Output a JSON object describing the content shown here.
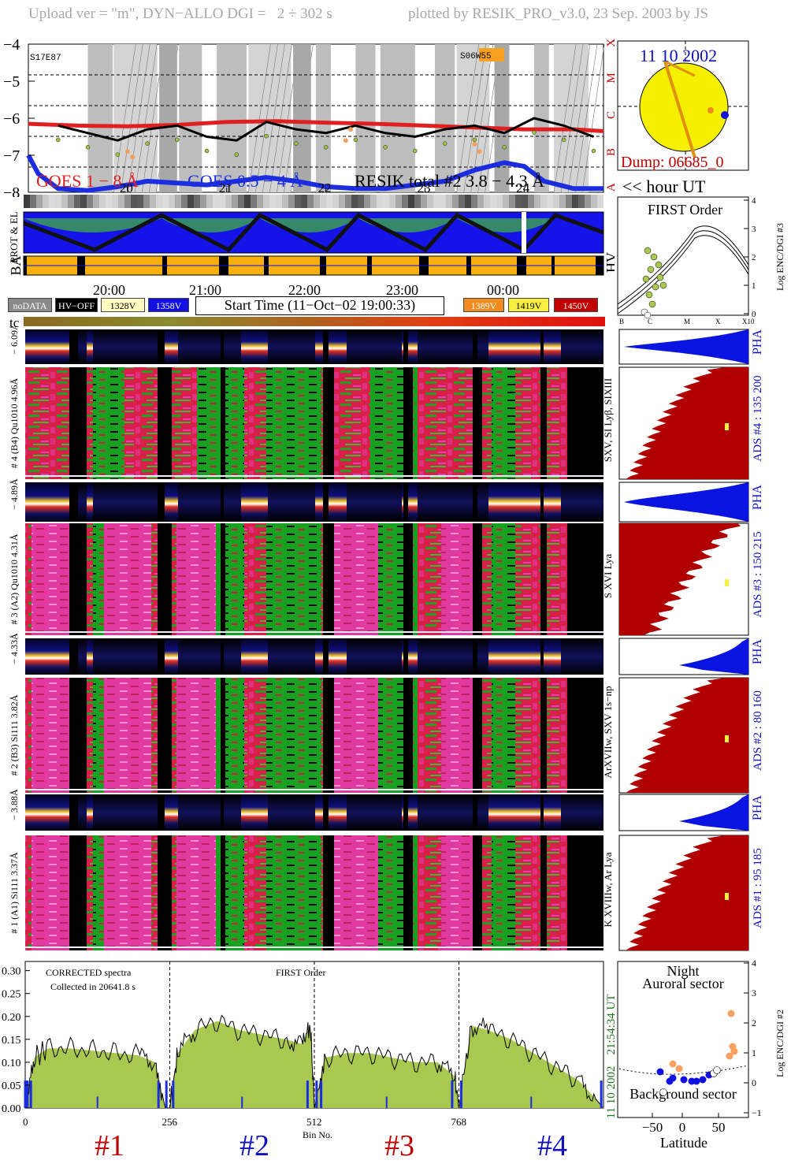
{
  "header": {
    "left": "Upload ver = \"m\", DYN−ALLO DGI =   2 ÷ 302 s",
    "right": "plotted by RESIK_PRO_v3.0, 23 Sep. 2003 by JS"
  },
  "goes_panel": {
    "y_ticks": [
      "−4",
      "−5",
      "−6",
      "−7",
      "−8"
    ],
    "class_ticks": [
      "X",
      "M",
      "C",
      "B",
      "A"
    ],
    "active_region_left": "S17E87",
    "active_region_right": "S06W55",
    "legend_long": "GOES 1 − 8 Å",
    "legend_short": "GOES 0.5 − 4 Å",
    "legend_resik": "RESIK total #2  3.8 − 4.3 Å",
    "hour_ticks": [
      "20",
      "21",
      "22",
      "23",
      "24"
    ],
    "hour_unit": "<< hour UT"
  },
  "sun_panel": {
    "date": "11 10 2002",
    "dump": "Dump: 06685_0"
  },
  "orbit_panel": {
    "label_prot": "PROT & EL",
    "label_ba": "BA",
    "label_hv": "HV"
  },
  "time_axis": {
    "ticks": [
      "20:00",
      "21:00",
      "22:00",
      "23:00",
      "00:00"
    ],
    "start_time": "Start Time (11−Oct−02 19:00:33)",
    "tc_label": "tc"
  },
  "hv_legend": [
    {
      "label": "noDATA",
      "bg": "#8a8a8a",
      "fg": "#ffffff"
    },
    {
      "label": "HV−OFF",
      "bg": "#000000",
      "fg": "#ffffff"
    },
    {
      "label": "1328V",
      "bg": "#fffbc0",
      "fg": "#000000"
    },
    {
      "label": "1358V",
      "bg": "#1010e0",
      "fg": "#ffffff"
    },
    {
      "label": "1389V",
      "bg": "#f08b20",
      "fg": "#ffffff"
    },
    {
      "label": "1419V",
      "bg": "#f8f040",
      "fg": "#000000"
    },
    {
      "label": "1450V",
      "bg": "#c00000",
      "fg": "#ffffff"
    }
  ],
  "first_order_panel": {
    "title": "FIRST Order",
    "ylabel": "Log ENC/DGI #3",
    "y_ticks": [
      "4",
      "3",
      "2",
      "1",
      "0"
    ],
    "x_ticks": [
      "B",
      "C",
      "M",
      "X",
      "X10"
    ]
  },
  "detectors": [
    {
      "id": "4",
      "pha_label": "− 6.09Å",
      "spec_label": "# 4 (B4) Qu1010 4.96Å",
      "lines": "SXV, SI Lyβ, SIXIII",
      "ads": "ADS #4 :   135 200"
    },
    {
      "id": "3",
      "pha_label": "− 4.89Å",
      "spec_label": "# 3 (A2) Qu1010  4.31Å",
      "lines": "S XVI Lya",
      "ads": "ADS #3 :   150 215"
    },
    {
      "id": "2",
      "pha_label": "− 4.33Å",
      "spec_label": "# 2 (B3) Si111  3.82Å",
      "lines": "ArXVIIw, SXV 1s−np",
      "ads": "ADS #2 :    80 160"
    },
    {
      "id": "1",
      "pha_label": "− 3.88Å",
      "spec_label": "# 1 (A1) Si111  3.37Å",
      "lines": "K XVIIIw, Ar Lya",
      "ads": "ADS #1 :    95 185"
    }
  ],
  "pha_label": "PHA",
  "spectrum_panel": {
    "y_ticks": [
      "0.30",
      "0.25",
      "0.20",
      "0.15",
      "0.10",
      "0.05",
      "0.00"
    ],
    "x_ticks": [
      "0",
      "256",
      "512",
      "768"
    ],
    "xlabel": "Bin No.",
    "caption1": "CORRECTED spectra",
    "caption2": "Collected in 20641.8 s",
    "order": "FIRST Order",
    "side_time": "21:54:34 UT",
    "side_date": "11 10 2002",
    "channel_labels": [
      "#1",
      "#2",
      "#3",
      "#4"
    ]
  },
  "latitude_panel": {
    "title1": "Night",
    "title2": "Auroral sector",
    "bottom": "Background sector",
    "ylabel": "Log ENC/DGI #2",
    "xlabel": "Latitude",
    "x_ticks": [
      "−50",
      "0",
      "50"
    ],
    "y_ticks": [
      "4",
      "3",
      "2",
      "1",
      "0",
      "−1"
    ]
  },
  "colors": {
    "goes_long": "#e02020",
    "goes_short": "#1a2ee0",
    "resik": "#000000",
    "spectrum_fill": "#a8c850",
    "ads_fill": "#b00000",
    "pha_fill": "#0a14e0",
    "sun": "#f5f000",
    "title_blue": "#1010c0",
    "title_red": "#c00000"
  },
  "chart_data": [
    {
      "type": "line",
      "title": "",
      "xlabel": "hour UT",
      "ylabel": "",
      "xlim": [
        19.0,
        24.8
      ],
      "ylim": [
        -8,
        -4
      ],
      "series": [
        {
          "name": "GOES 1 − 8 Å",
          "x": [
            19.0,
            19.5,
            20.0,
            20.5,
            21.0,
            21.5,
            22.0,
            22.5,
            23.0,
            23.5,
            24.0,
            24.5,
            24.8
          ],
          "values": [
            -6.15,
            -6.2,
            -6.22,
            -6.18,
            -6.1,
            -6.08,
            -6.12,
            -6.15,
            -6.2,
            -6.25,
            -6.3,
            -6.3,
            -6.35
          ]
        },
        {
          "name": "GOES 0.5 − 4 Å",
          "x": [
            19.0,
            19.1,
            19.3,
            19.6,
            19.9,
            20.2,
            20.5,
            20.8,
            21.1,
            21.4,
            21.7,
            22.0,
            22.3,
            22.6,
            22.9,
            23.2,
            23.5,
            23.8,
            24.0,
            24.2,
            24.5,
            24.8
          ],
          "values": [
            -7.0,
            -7.5,
            -7.9,
            -7.95,
            -7.85,
            -7.7,
            -7.75,
            -7.8,
            -7.7,
            -7.6,
            -7.7,
            -7.85,
            -7.9,
            -7.9,
            -7.8,
            -7.7,
            -7.4,
            -7.2,
            -7.3,
            -7.7,
            -7.9,
            -7.9
          ]
        },
        {
          "name": "RESIK total #2  3.8 − 4.3 Å",
          "x": [
            19.3,
            19.6,
            19.9,
            20.2,
            20.5,
            20.8,
            21.1,
            21.4,
            21.7,
            22.0,
            22.3,
            22.6,
            22.9,
            23.2,
            23.5,
            23.8,
            24.1,
            24.4,
            24.7
          ],
          "values": [
            -6.2,
            -6.4,
            -6.6,
            -6.3,
            -6.2,
            -6.5,
            -6.6,
            -6.1,
            -6.3,
            -6.4,
            -6.2,
            -6.4,
            -6.5,
            -6.3,
            -6.2,
            -6.4,
            -6.0,
            -6.2,
            -6.5
          ]
        }
      ]
    },
    {
      "type": "area",
      "title": "",
      "xlabel": "Bin No.",
      "ylabel": "",
      "xlim": [
        0,
        1024
      ],
      "ylim": [
        0,
        0.32
      ],
      "series": [
        {
          "name": "",
          "x": [
            0,
            16,
            40,
            80,
            120,
            160,
            200,
            230,
            248,
            256,
            270,
            300,
            340,
            380,
            420,
            460,
            490,
            505,
            512,
            530,
            570,
            610,
            650,
            690,
            730,
            760,
            768,
            790,
            820,
            860,
            900,
            940,
            980,
            1010,
            1024
          ],
          "values": [
            0.0,
            0.11,
            0.13,
            0.13,
            0.125,
            0.12,
            0.115,
            0.1,
            0.0,
            0.0,
            0.12,
            0.17,
            0.19,
            0.17,
            0.16,
            0.15,
            0.14,
            0.18,
            0.0,
            0.11,
            0.12,
            0.12,
            0.11,
            0.1,
            0.1,
            0.07,
            0.0,
            0.18,
            0.17,
            0.15,
            0.12,
            0.09,
            0.06,
            0.02,
            0.0
          ]
        }
      ]
    }
  ]
}
